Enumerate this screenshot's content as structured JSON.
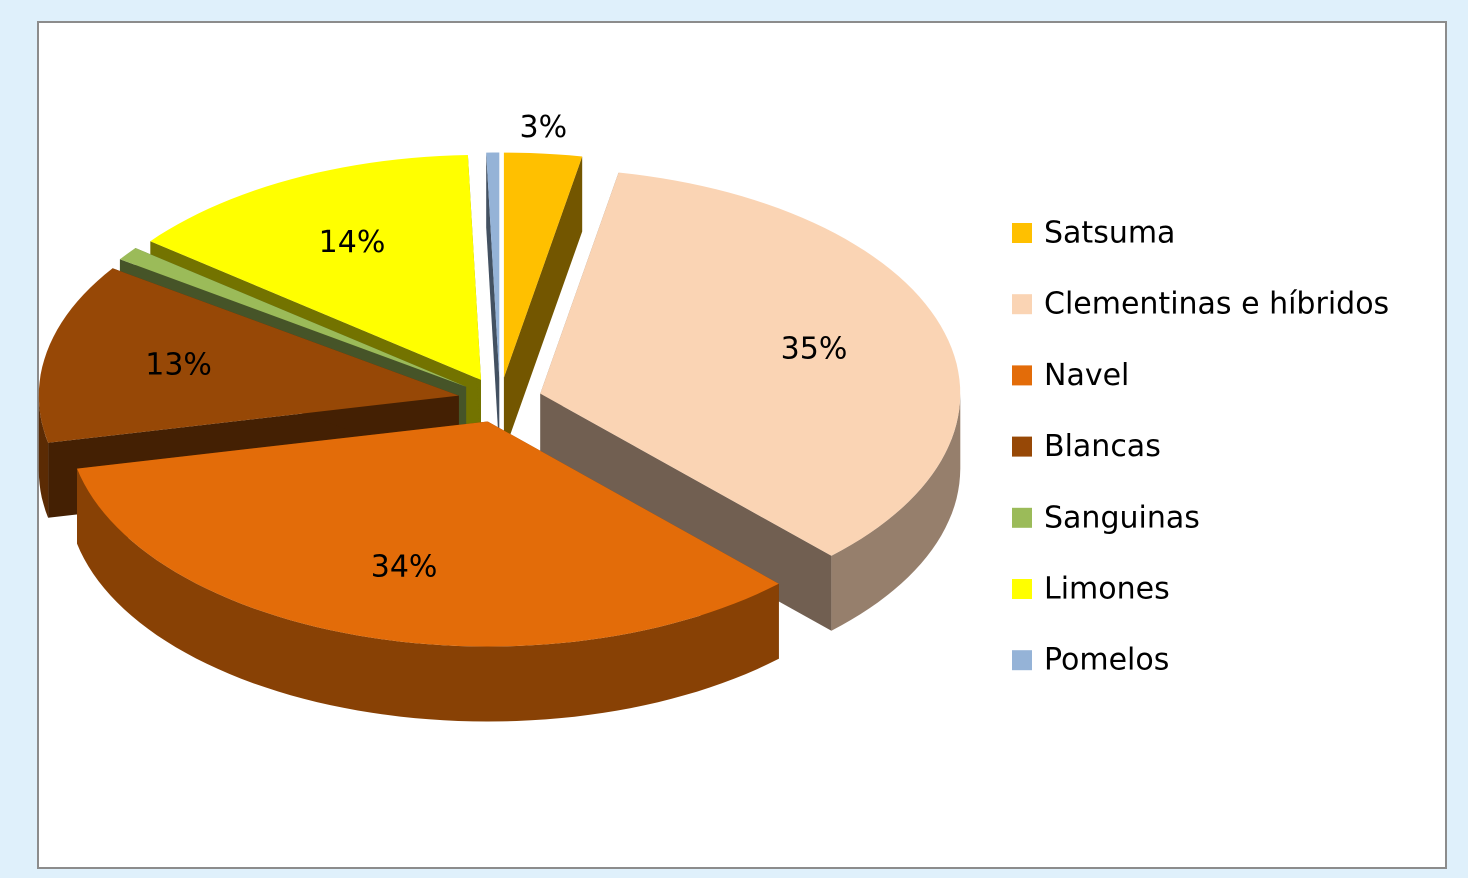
{
  "chart_data": {
    "type": "pie3d",
    "categories": [
      "Satsuma",
      "Clementinas e híbridos",
      "Navel",
      "Blancas",
      "Sanguinas",
      "Limones",
      "Pomelos"
    ],
    "values": [
      3,
      35,
      34,
      13,
      1,
      14,
      0.5
    ],
    "value_labels": [
      "3%",
      "35%",
      "34%",
      "13%",
      null,
      "14%",
      null
    ],
    "colors": [
      "#ffc000",
      "#fad4b4",
      "#e36c09",
      "#974806",
      "#9bbb59",
      "#ffff00",
      "#95b3d7"
    ],
    "exploded": true,
    "legend": "right"
  }
}
